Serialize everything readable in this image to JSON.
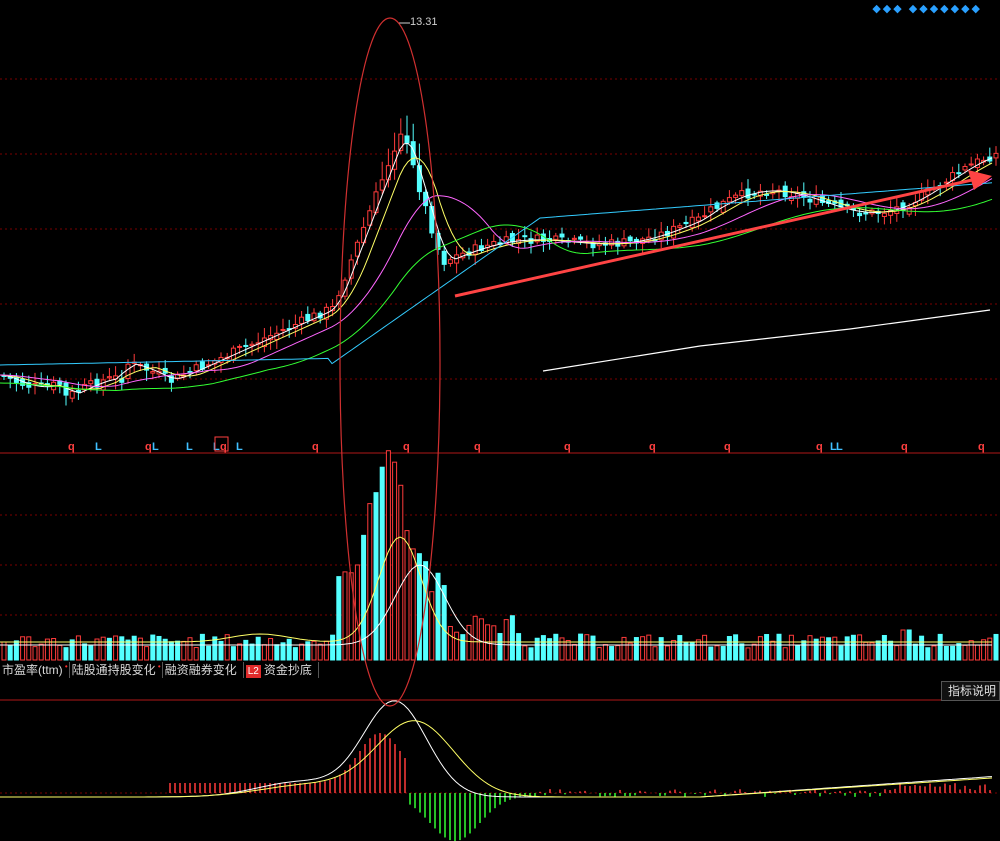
{
  "tabs": [
    {
      "label": "市盈率(ttm)",
      "dot": "•"
    },
    {
      "label": "陆股通持股变化",
      "dot": "•"
    },
    {
      "label": "融资融券变化",
      "dot": ""
    },
    {
      "label": "资金抄底",
      "tag": "L2"
    }
  ],
  "help_button": "指标说明",
  "toolbar_icons": [
    "diamond-icon",
    "diamond-icon",
    "diamond-icon",
    "diamond-icon",
    "diamond-icon",
    "diamond-icon",
    "diamond-icon",
    "diamond-icon",
    "diamond-icon",
    "diamond-icon"
  ],
  "colors": {
    "up": "#ff3b3b",
    "down": "#54ffff",
    "grid": "#7a0000",
    "ma_white": "#ffffff",
    "ma_yellow": "#ffff66",
    "ma_magenta": "#ff66ff",
    "ma_green": "#33ff33",
    "ma_blue": "#33ccff",
    "arrow": "#ff4444",
    "ellipse": "#d03030",
    "signal_q": "#ff4040",
    "signal_L": "#40c0ff"
  },
  "chart_data": [
    {
      "type": "candlestick",
      "title": "",
      "annotations": [
        "13.31"
      ],
      "price_marks": {
        "peak": 13.31
      },
      "signals": [
        "q",
        "L",
        "q",
        "L",
        "L",
        "L",
        "q",
        "L",
        "q",
        "q",
        "q",
        "q",
        "q",
        "q",
        "q",
        "L",
        "L",
        "q",
        "q"
      ],
      "trend": "uptrend after spike"
    },
    {
      "type": "bar",
      "title": "",
      "series": [
        {
          "values": []
        }
      ]
    },
    {
      "type": "line",
      "title": "",
      "series": [
        {
          "values": []
        },
        {
          "values": []
        }
      ]
    }
  ]
}
